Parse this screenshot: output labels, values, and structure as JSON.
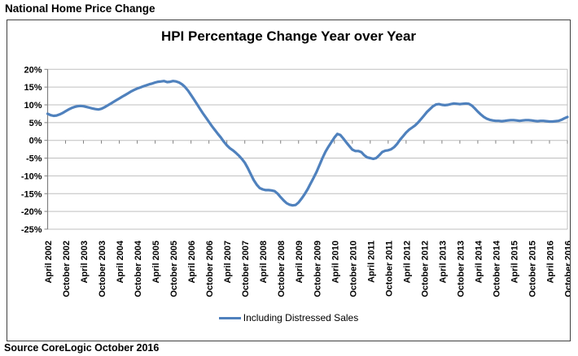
{
  "page": {
    "heading": "National Home Price Change",
    "source": "Source CoreLogic October 2016"
  },
  "chart_data": {
    "type": "line",
    "title": "HPI Percentage Change Year over Year",
    "legend_position": "bottom",
    "grid": true,
    "ylim": [
      -25,
      20
    ],
    "ytick_step_percent": 5,
    "y_tick_labels": [
      "20%",
      "15%",
      "10%",
      "5%",
      "0%",
      "-5%",
      "-10%",
      "-15%",
      "-20%",
      "-25%"
    ],
    "x_start": "April 2002",
    "x_end": "October 2016",
    "x_interval": "monthly",
    "x_tick_labels": [
      "April 2002",
      "October 2002",
      "April 2003",
      "October 2003",
      "April 2004",
      "October 2004",
      "April 2005",
      "October 2005",
      "April 2006",
      "October 2006",
      "April 2007",
      "October 2007",
      "April 2008",
      "October 2008",
      "April 2009",
      "October 2009",
      "April 2010",
      "October 2010",
      "April 2011",
      "October 2011",
      "April 2012",
      "October 2012",
      "April 2013",
      "October 2013",
      "April 2014",
      "October 2014",
      "April 2015",
      "October 2015",
      "April 2016",
      "October 2016"
    ],
    "colors": {
      "line": "#4F81BD",
      "gridline": "#BFBFBF",
      "axis": "#808080",
      "text": "#000000"
    },
    "series": [
      {
        "name": "Including Distressed Sales",
        "values": [
          7.5,
          7.1,
          6.9,
          7.0,
          7.3,
          7.7,
          8.2,
          8.7,
          9.1,
          9.4,
          9.6,
          9.7,
          9.6,
          9.4,
          9.2,
          9.0,
          8.8,
          8.7,
          8.9,
          9.3,
          9.8,
          10.3,
          10.8,
          11.3,
          11.8,
          12.3,
          12.8,
          13.3,
          13.8,
          14.2,
          14.6,
          14.9,
          15.2,
          15.5,
          15.8,
          16.0,
          16.3,
          16.5,
          16.6,
          16.7,
          16.4,
          16.5,
          16.7,
          16.6,
          16.3,
          15.8,
          15.0,
          14.0,
          12.8,
          11.5,
          10.2,
          8.9,
          7.6,
          6.4,
          5.2,
          4.0,
          2.9,
          1.8,
          0.8,
          -0.4,
          -1.4,
          -2.2,
          -2.8,
          -3.5,
          -4.3,
          -5.2,
          -6.3,
          -7.8,
          -9.5,
          -11.2,
          -12.5,
          -13.4,
          -13.8,
          -14.0,
          -14.0,
          -14.1,
          -14.3,
          -15.0,
          -16.0,
          -16.9,
          -17.7,
          -18.1,
          -18.3,
          -18.2,
          -17.5,
          -16.4,
          -15.2,
          -13.8,
          -12.2,
          -10.6,
          -8.9,
          -7.0,
          -5.0,
          -3.2,
          -1.8,
          -0.5,
          0.8,
          1.8,
          1.5,
          0.5,
          -0.6,
          -1.6,
          -2.6,
          -3.0,
          -3.0,
          -3.3,
          -4.2,
          -4.8,
          -5.0,
          -5.2,
          -5.0,
          -4.2,
          -3.3,
          -2.9,
          -2.8,
          -2.5,
          -1.9,
          -1.0,
          0.2,
          1.2,
          2.2,
          3.0,
          3.6,
          4.2,
          5.0,
          6.0,
          7.0,
          8.0,
          8.8,
          9.6,
          10.1,
          10.2,
          10.0,
          9.9,
          10.0,
          10.2,
          10.4,
          10.3,
          10.2,
          10.3,
          10.4,
          10.3,
          9.8,
          9.0,
          8.1,
          7.3,
          6.6,
          6.1,
          5.8,
          5.6,
          5.5,
          5.5,
          5.4,
          5.5,
          5.6,
          5.7,
          5.7,
          5.6,
          5.5,
          5.6,
          5.7,
          5.7,
          5.6,
          5.5,
          5.4,
          5.5,
          5.5,
          5.4,
          5.3,
          5.3,
          5.4,
          5.5,
          5.8,
          6.2,
          6.6
        ]
      }
    ]
  }
}
